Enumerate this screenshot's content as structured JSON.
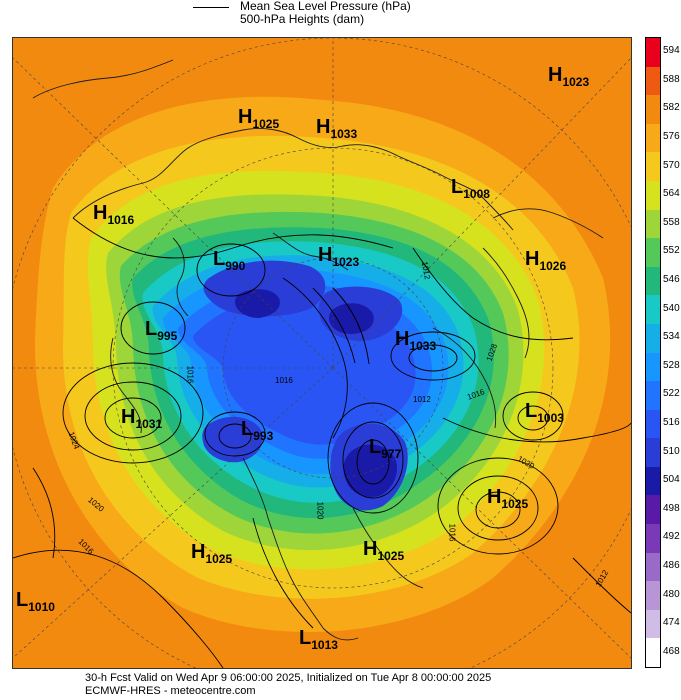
{
  "legend": {
    "title": "Mean Sea Level Pressure (hPa)",
    "subtitle": "500-hPa Heights (dam)"
  },
  "map": {
    "projection": "polar-stereographic-north",
    "ocean_fill": "#f38a10",
    "centers": [
      {
        "type": "H",
        "value": "1023"
      },
      {
        "type": "H",
        "value": "1025"
      },
      {
        "type": "H",
        "value": "1033"
      },
      {
        "type": "L",
        "value": "1008"
      },
      {
        "type": "H",
        "value": "1016"
      },
      {
        "type": "L",
        "value": "990"
      },
      {
        "type": "H",
        "value": "1023"
      },
      {
        "type": "H",
        "value": "1026"
      },
      {
        "type": "L",
        "value": "995"
      },
      {
        "type": "H",
        "value": "1033"
      },
      {
        "type": "H",
        "value": "1031"
      },
      {
        "type": "L",
        "value": "993"
      },
      {
        "type": "L",
        "value": "977"
      },
      {
        "type": "L",
        "value": "1003"
      },
      {
        "type": "H",
        "value": "1025"
      },
      {
        "type": "H",
        "value": "1025"
      },
      {
        "type": "H",
        "value": "1025"
      },
      {
        "type": "L",
        "value": "1010"
      },
      {
        "type": "L",
        "value": "1013"
      }
    ],
    "isobar_labels": [
      "1016",
      "1016",
      "1024",
      "1020",
      "1016",
      "1012",
      "1016",
      "1020",
      "1012",
      "1016",
      "1020",
      "1028",
      "1012"
    ]
  },
  "colorbar": {
    "levels": [
      "594",
      "588",
      "582",
      "576",
      "570",
      "564",
      "558",
      "552",
      "546",
      "540",
      "534",
      "528",
      "522",
      "516",
      "510",
      "504",
      "498",
      "492",
      "486",
      "480",
      "474",
      "468"
    ],
    "colors": [
      "#e8001c",
      "#ef5a12",
      "#f38a10",
      "#f7a918",
      "#f5c81e",
      "#d7e21e",
      "#9ed63a",
      "#55c85a",
      "#22b87c",
      "#18c9c5",
      "#16aee8",
      "#1896ff",
      "#2074ff",
      "#2a55f5",
      "#2a3dd6",
      "#1a1aa8",
      "#5a1aa8",
      "#7a3ab8",
      "#9a6ac8",
      "#b896d6",
      "#d0bce4",
      "#ffffff"
    ]
  },
  "footer": {
    "line1": "30-h Fcst Valid on Wed Apr  9 06:00:00 2025, Initialized on Tue Apr  8 00:00:00 2025",
    "line2": "ECMWF-HRES  - meteocentre.com"
  }
}
